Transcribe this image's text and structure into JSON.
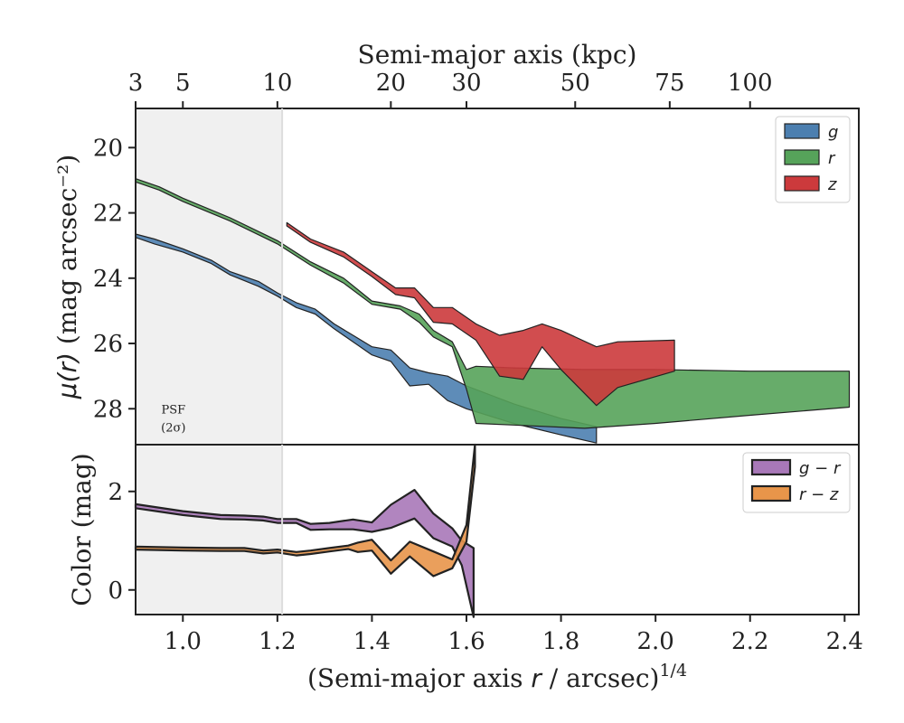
{
  "colors": {
    "g": "#4c7fb0",
    "r": "#56a35a",
    "z": "#cc3a3c",
    "g_minus_r": "#a878b8",
    "r_minus_z": "#e8954a",
    "psf_shade": "#f0f0f0",
    "line": "#222222"
  },
  "top_axis": {
    "title": "Semi-major axis (kpc)",
    "ticks": [
      {
        "label": "3",
        "x": 0.9
      },
      {
        "label": "5",
        "x": 1.0
      },
      {
        "label": "10",
        "x": 1.2
      },
      {
        "label": "20",
        "x": 1.44
      },
      {
        "label": "30",
        "x": 1.6
      },
      {
        "label": "50",
        "x": 1.83
      },
      {
        "label": "75",
        "x": 2.03
      },
      {
        "label": "100",
        "x": 2.2
      }
    ]
  },
  "psf_label": {
    "line1": "PSF",
    "line2": "(2σ)"
  },
  "chart_data": [
    {
      "type": "area",
      "xlabel": "(Semi-major axis r / arcsec)^1/4",
      "ylabel": "μ(r) (mag arcsec⁻²)",
      "xlim": [
        0.9,
        2.43
      ],
      "ylim": [
        29.1,
        18.8
      ],
      "y_inverted": true,
      "psf_shade_x": [
        0.9,
        1.21
      ],
      "x_ticks": [
        1.0,
        1.2,
        1.4,
        1.6,
        1.8,
        2.0,
        2.2,
        2.4
      ],
      "x_tick_labels": [
        "1.0",
        "1.2",
        "1.4",
        "1.6",
        "1.8",
        "2.0",
        "2.2",
        "2.4"
      ],
      "y_ticks": [
        20,
        22,
        24,
        26,
        28
      ],
      "y_tick_labels": [
        "20",
        "22",
        "24",
        "26",
        "28"
      ],
      "legend": {
        "position": "top-right",
        "entries": [
          "g",
          "r",
          "z"
        ]
      },
      "series": [
        {
          "name": "g",
          "color_key": "g",
          "x": [
            0.9,
            0.94,
            1.0,
            1.06,
            1.1,
            1.16,
            1.2,
            1.24,
            1.28,
            1.32,
            1.36,
            1.4,
            1.44,
            1.48,
            1.52,
            1.56,
            1.6,
            1.7,
            1.8,
            1.875
          ],
          "lower": [
            22.65,
            22.8,
            23.1,
            23.45,
            23.8,
            24.1,
            24.45,
            24.75,
            24.95,
            25.4,
            25.75,
            26.1,
            26.2,
            26.75,
            26.9,
            27.0,
            27.3,
            27.85,
            28.3,
            28.55
          ],
          "upper": [
            22.75,
            22.95,
            23.2,
            23.55,
            23.9,
            24.25,
            24.55,
            24.9,
            25.1,
            25.55,
            25.95,
            26.35,
            26.55,
            27.3,
            27.25,
            27.75,
            28.0,
            28.45,
            28.8,
            29.05
          ]
        },
        {
          "name": "r",
          "color_key": "r",
          "x": [
            0.9,
            0.95,
            1.0,
            1.1,
            1.2,
            1.27,
            1.34,
            1.4,
            1.46,
            1.5,
            1.53,
            1.57,
            1.6,
            1.62,
            1.7,
            1.85,
            2.0,
            2.2,
            2.41
          ],
          "lower": [
            20.95,
            21.2,
            21.55,
            22.15,
            22.85,
            23.5,
            24.0,
            24.7,
            24.85,
            25.1,
            25.6,
            25.95,
            26.8,
            26.7,
            26.75,
            26.8,
            26.8,
            26.85,
            26.85
          ],
          "upper": [
            21.05,
            21.3,
            21.65,
            22.25,
            22.95,
            23.6,
            24.15,
            24.8,
            24.95,
            25.35,
            25.8,
            26.1,
            27.4,
            28.45,
            28.5,
            28.6,
            28.45,
            28.2,
            27.95
          ]
        },
        {
          "name": "z",
          "color_key": "z",
          "x": [
            1.22,
            1.27,
            1.34,
            1.4,
            1.45,
            1.49,
            1.53,
            1.57,
            1.62,
            1.67,
            1.72,
            1.76,
            1.8,
            1.875,
            1.92,
            2.04
          ],
          "lower": [
            22.3,
            22.8,
            23.2,
            23.8,
            24.3,
            24.3,
            24.9,
            24.9,
            25.4,
            25.75,
            25.6,
            25.4,
            25.6,
            26.1,
            25.95,
            25.9
          ],
          "upper": [
            22.4,
            22.9,
            23.35,
            23.95,
            24.5,
            24.6,
            25.35,
            25.4,
            25.9,
            27.0,
            27.1,
            26.1,
            26.8,
            27.9,
            27.35,
            26.85
          ]
        }
      ]
    },
    {
      "type": "area",
      "xlabel": "(Semi-major axis r / arcsec)^1/4",
      "ylabel": "Color (mag)",
      "xlim": [
        0.9,
        2.43
      ],
      "ylim": [
        -0.5,
        2.95
      ],
      "psf_shade_x": [
        0.9,
        1.21
      ],
      "x_ticks": [
        1.0,
        1.2,
        1.4,
        1.6,
        1.8,
        2.0,
        2.2,
        2.4
      ],
      "x_tick_labels": [
        "1.0",
        "1.2",
        "1.4",
        "1.6",
        "1.8",
        "2.0",
        "2.2",
        "2.4"
      ],
      "y_ticks": [
        0,
        2
      ],
      "y_tick_labels": [
        "0",
        "2"
      ],
      "legend": {
        "position": "top-right",
        "entries": [
          "g − r",
          "r − z"
        ]
      },
      "series": [
        {
          "name": "g − r",
          "color_key": "g_minus_r",
          "x": [
            0.9,
            1.0,
            1.08,
            1.13,
            1.17,
            1.2,
            1.24,
            1.27,
            1.31,
            1.36,
            1.4,
            1.44,
            1.49,
            1.53,
            1.57,
            1.59,
            1.615
          ],
          "lower": [
            1.66,
            1.52,
            1.44,
            1.43,
            1.41,
            1.36,
            1.36,
            1.22,
            1.23,
            1.23,
            1.18,
            1.26,
            1.45,
            1.05,
            0.88,
            0.5,
            -0.55
          ],
          "upper": [
            1.74,
            1.6,
            1.52,
            1.51,
            1.49,
            1.44,
            1.44,
            1.34,
            1.36,
            1.43,
            1.37,
            1.73,
            2.03,
            1.55,
            1.25,
            1.0,
            0.85
          ]
        },
        {
          "name": "r − z",
          "color_key": "r_minus_z",
          "x": [
            0.9,
            1.0,
            1.08,
            1.13,
            1.17,
            1.2,
            1.24,
            1.27,
            1.31,
            1.35,
            1.37,
            1.4,
            1.44,
            1.48,
            1.53,
            1.57,
            1.6,
            1.618
          ],
          "lower": [
            0.82,
            0.8,
            0.79,
            0.79,
            0.74,
            0.76,
            0.7,
            0.73,
            0.78,
            0.83,
            0.77,
            0.8,
            0.33,
            0.68,
            0.28,
            0.44,
            0.98,
            2.5
          ],
          "upper": [
            0.88,
            0.86,
            0.85,
            0.85,
            0.8,
            0.82,
            0.77,
            0.8,
            0.85,
            0.9,
            0.96,
            1.02,
            0.6,
            0.98,
            0.78,
            0.62,
            1.32,
            2.95
          ]
        }
      ]
    }
  ]
}
